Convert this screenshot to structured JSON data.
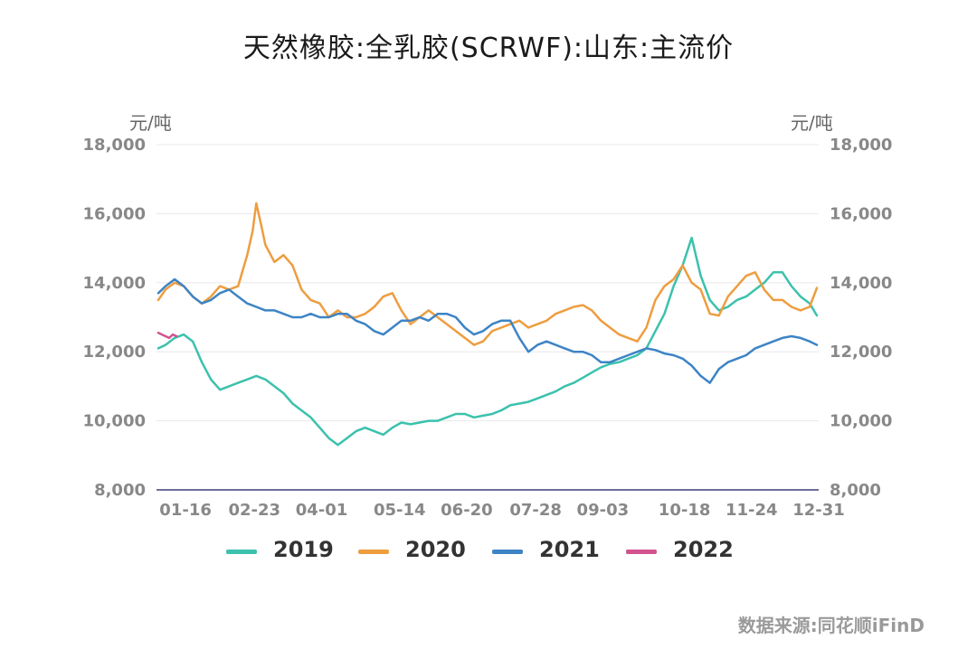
{
  "chart_data": {
    "type": "line",
    "title": "天然橡胶:全乳胶(SCRWF):山东:主流价",
    "ylabel_left": "元/吨",
    "ylabel_right": "元/吨",
    "ylim": [
      8000,
      18000
    ],
    "yticks": [
      "8,000",
      "10,000",
      "12,000",
      "14,000",
      "16,000",
      "18,000"
    ],
    "ytick_values": [
      8000,
      10000,
      12000,
      14000,
      16000,
      18000
    ],
    "xlim": [
      0,
      365
    ],
    "xticks": [
      "01-16",
      "02-23",
      "04-01",
      "05-14",
      "06-20",
      "07-28",
      "09-03",
      "10-18",
      "11-24",
      "12-31"
    ],
    "xtick_positions": [
      16,
      54,
      91,
      134,
      171,
      209,
      246,
      291,
      328,
      365
    ],
    "grid": true,
    "legend_position": "bottom",
    "series": [
      {
        "name": "2019",
        "color": "#3cc1ad",
        "x": [
          1,
          5,
          10,
          15,
          20,
          25,
          30,
          35,
          40,
          45,
          50,
          55,
          60,
          65,
          70,
          75,
          80,
          85,
          90,
          95,
          100,
          105,
          110,
          115,
          120,
          125,
          130,
          135,
          140,
          145,
          150,
          155,
          160,
          165,
          170,
          175,
          180,
          185,
          190,
          195,
          200,
          205,
          210,
          215,
          220,
          225,
          230,
          235,
          240,
          245,
          250,
          255,
          260,
          265,
          270,
          275,
          280,
          285,
          290,
          295,
          300,
          305,
          310,
          315,
          320,
          325,
          330,
          335,
          340,
          345,
          350,
          355,
          360,
          364
        ],
        "values": [
          12100,
          12200,
          12400,
          12500,
          12300,
          11700,
          11200,
          10900,
          11000,
          11100,
          11200,
          11300,
          11200,
          11000,
          10800,
          10500,
          10300,
          10100,
          9800,
          9500,
          9300,
          9500,
          9700,
          9800,
          9700,
          9600,
          9800,
          9950,
          9900,
          9950,
          10000,
          10000,
          10100,
          10200,
          10200,
          10100,
          10150,
          10200,
          10300,
          10450,
          10500,
          10550,
          10650,
          10750,
          10850,
          11000,
          11100,
          11250,
          11400,
          11550,
          11650,
          11700,
          11800,
          11900,
          12100,
          12600,
          13100,
          13900,
          14500,
          15300,
          14200,
          13500,
          13200,
          13300,
          13500,
          13600,
          13800,
          14000,
          14300,
          14300,
          13900,
          13600,
          13400,
          13050
        ]
      },
      {
        "name": "2020",
        "color": "#ee9d3f",
        "x": [
          1,
          5,
          10,
          15,
          20,
          25,
          30,
          35,
          40,
          45,
          50,
          53,
          55,
          58,
          60,
          65,
          70,
          75,
          80,
          85,
          90,
          95,
          100,
          105,
          110,
          115,
          120,
          125,
          130,
          135,
          140,
          145,
          150,
          155,
          160,
          165,
          170,
          175,
          180,
          185,
          190,
          195,
          200,
          205,
          210,
          215,
          220,
          225,
          230,
          235,
          240,
          245,
          250,
          255,
          260,
          265,
          270,
          275,
          280,
          285,
          290,
          295,
          300,
          305,
          310,
          315,
          320,
          325,
          330,
          335,
          340,
          345,
          350,
          355,
          360,
          364
        ],
        "values": [
          13500,
          13800,
          14000,
          13900,
          13600,
          13400,
          13600,
          13900,
          13800,
          13900,
          14800,
          15500,
          16300,
          15600,
          15100,
          14600,
          14800,
          14500,
          13800,
          13500,
          13400,
          13000,
          13200,
          13000,
          13000,
          13100,
          13300,
          13600,
          13700,
          13200,
          12800,
          13000,
          13200,
          13000,
          12800,
          12600,
          12400,
          12200,
          12300,
          12600,
          12700,
          12800,
          12900,
          12700,
          12800,
          12900,
          13100,
          13200,
          13300,
          13350,
          13200,
          12900,
          12700,
          12500,
          12400,
          12300,
          12700,
          13500,
          13900,
          14100,
          14500,
          14000,
          13800,
          13100,
          13050,
          13600,
          13900,
          14200,
          14300,
          13800,
          13500,
          13500,
          13300,
          13200,
          13300,
          13850
        ]
      },
      {
        "name": "2021",
        "color": "#3d84c5",
        "x": [
          1,
          5,
          10,
          15,
          20,
          25,
          30,
          35,
          40,
          45,
          50,
          55,
          60,
          65,
          70,
          75,
          80,
          85,
          90,
          95,
          100,
          105,
          110,
          115,
          120,
          125,
          130,
          135,
          140,
          145,
          150,
          155,
          160,
          165,
          170,
          175,
          180,
          185,
          190,
          195,
          200,
          205,
          210,
          215,
          220,
          225,
          230,
          235,
          240,
          245,
          250,
          255,
          260,
          265,
          270,
          275,
          280,
          285,
          290,
          295,
          300,
          305,
          310,
          315,
          320,
          325,
          330,
          335,
          340,
          345,
          350,
          355,
          360,
          364
        ],
        "values": [
          13700,
          13900,
          14100,
          13900,
          13600,
          13400,
          13500,
          13700,
          13800,
          13600,
          13400,
          13300,
          13200,
          13200,
          13100,
          13000,
          13000,
          13100,
          13000,
          13000,
          13100,
          13100,
          12900,
          12800,
          12600,
          12500,
          12700,
          12900,
          12900,
          13000,
          12900,
          13100,
          13100,
          13000,
          12700,
          12500,
          12600,
          12800,
          12900,
          12900,
          12400,
          12000,
          12200,
          12300,
          12200,
          12100,
          12000,
          12000,
          11900,
          11700,
          11700,
          11800,
          11900,
          12000,
          12100,
          12050,
          11950,
          11900,
          11800,
          11600,
          11300,
          11100,
          11500,
          11700,
          11800,
          11900,
          12100,
          12200,
          12300,
          12400,
          12450,
          12400,
          12300,
          12200
        ]
      },
      {
        "name": "2022",
        "color": "#d2538f",
        "x": [
          1,
          3,
          5,
          7,
          9,
          11
        ],
        "values": [
          12550,
          12500,
          12450,
          12400,
          12500,
          12450
        ]
      }
    ]
  },
  "source": "数据来源:同花顺iFinD"
}
